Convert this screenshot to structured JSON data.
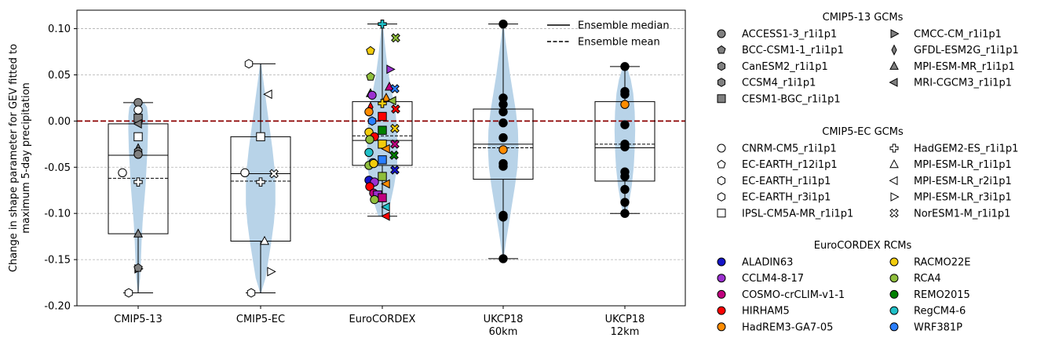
{
  "chart_data": {
    "type": "violin-box",
    "ylabel_lines": [
      "Change in shape parameter for GEV fitted to",
      "maximum 5-day precipitation"
    ],
    "ylim": [
      -0.2,
      0.12
    ],
    "yticks": [
      -0.2,
      -0.15,
      -0.1,
      -0.05,
      0.0,
      0.05,
      0.1
    ],
    "ytick_labels": [
      "-0.20",
      "-0.15",
      "-0.10",
      "-0.05",
      "0.00",
      "0.05",
      "0.10"
    ],
    "grid": "horizontal dashed",
    "zero_line_color": "#8b0000",
    "violin_color": "#b8d3e8",
    "categories": [
      {
        "label_lines": [
          "CMIP5-13"
        ]
      },
      {
        "label_lines": [
          "CMIP5-EC"
        ]
      },
      {
        "label_lines": [
          "EuroCORDEX"
        ]
      },
      {
        "label_lines": [
          "UKCP18",
          "60km"
        ]
      },
      {
        "label_lines": [
          "UKCP18",
          "12km"
        ]
      }
    ],
    "groups": [
      {
        "min": -0.186,
        "max": 0.02,
        "q1": -0.122,
        "q3": -0.003,
        "median": -0.037,
        "mean": -0.062,
        "violin": [
          [
            -0.186,
            0.003
          ],
          [
            -0.17,
            0.02
          ],
          [
            -0.15,
            0.028
          ],
          [
            -0.13,
            0.035
          ],
          [
            -0.11,
            0.045
          ],
          [
            -0.09,
            0.06
          ],
          [
            -0.07,
            0.075
          ],
          [
            -0.05,
            0.085
          ],
          [
            -0.03,
            0.095
          ],
          [
            -0.01,
            0.1
          ],
          [
            0.005,
            0.1
          ],
          [
            0.015,
            0.09
          ],
          [
            0.02,
            0.06
          ]
        ],
        "points": [
          {
            "y": 0.02,
            "m": "o",
            "c": "#808080"
          },
          {
            "y": 0.012,
            "m": "o",
            "c": "#ffffff"
          },
          {
            "y": 0.003,
            "m": "s",
            "c": "#808080"
          },
          {
            "y": -0.003,
            "m": "<",
            "c": "#808080"
          },
          {
            "y": -0.017,
            "m": "s",
            "c": "#ffffff"
          },
          {
            "y": -0.03,
            "m": "d",
            "c": "#808080"
          },
          {
            "y": -0.033,
            "m": "h",
            "c": "#808080"
          },
          {
            "y": -0.036,
            "m": "o",
            "c": "#808080"
          },
          {
            "y": -0.056,
            "m": "o",
            "c": "#ffffff",
            "dx": -20
          },
          {
            "y": -0.066,
            "m": "P",
            "c": "#ffffff"
          },
          {
            "y": -0.122,
            "m": "^",
            "c": "#808080"
          },
          {
            "y": -0.16,
            "m": ">",
            "c": "#808080"
          },
          {
            "y": -0.159,
            "m": "p",
            "c": "#808080"
          },
          {
            "y": -0.186,
            "m": "h",
            "c": "#ffffff",
            "dx": -12
          }
        ]
      },
      {
        "min": -0.186,
        "max": 0.062,
        "q1": -0.13,
        "q3": -0.017,
        "median": -0.057,
        "mean": -0.065,
        "violin": [
          [
            -0.186,
            0.005
          ],
          [
            -0.17,
            0.05
          ],
          [
            -0.15,
            0.08
          ],
          [
            -0.13,
            0.11
          ],
          [
            -0.11,
            0.135
          ],
          [
            -0.09,
            0.15
          ],
          [
            -0.07,
            0.15
          ],
          [
            -0.05,
            0.14
          ],
          [
            -0.03,
            0.12
          ],
          [
            -0.01,
            0.095
          ],
          [
            0.01,
            0.07
          ],
          [
            0.03,
            0.045
          ],
          [
            0.05,
            0.02
          ],
          [
            0.062,
            0.005
          ]
        ],
        "points": [
          {
            "y": 0.062,
            "m": "h",
            "c": "#ffffff",
            "dx": -15
          },
          {
            "y": 0.029,
            "m": "<",
            "c": "#ffffff",
            "dx": 10
          },
          {
            "y": -0.017,
            "m": "s",
            "c": "#ffffff"
          },
          {
            "y": -0.056,
            "m": "o",
            "c": "#ffffff",
            "dx": -20
          },
          {
            "y": -0.057,
            "m": "X",
            "c": "#ffffff",
            "dx": 17
          },
          {
            "y": -0.066,
            "m": "P",
            "c": "#ffffff"
          },
          {
            "y": -0.13,
            "m": "^",
            "c": "#ffffff",
            "dx": 5
          },
          {
            "y": -0.163,
            "m": ">",
            "c": "#ffffff",
            "dx": 13
          },
          {
            "y": -0.186,
            "m": "h",
            "c": "#ffffff",
            "dx": -12
          }
        ]
      },
      {
        "min": -0.103,
        "max": 0.105,
        "q1": -0.048,
        "q3": 0.021,
        "median": -0.021,
        "mean": -0.016,
        "violin": [
          [
            -0.103,
            0.04
          ],
          [
            -0.09,
            0.08
          ],
          [
            -0.07,
            0.12
          ],
          [
            -0.05,
            0.15
          ],
          [
            -0.03,
            0.155
          ],
          [
            -0.01,
            0.15
          ],
          [
            0.01,
            0.135
          ],
          [
            0.03,
            0.1
          ],
          [
            0.05,
            0.065
          ],
          [
            0.07,
            0.04
          ],
          [
            0.09,
            0.02
          ],
          [
            0.105,
            0.005
          ]
        ],
        "points": [
          {
            "y": 0.105,
            "m": "P",
            "c": "#20c0c8"
          },
          {
            "y": 0.09,
            "m": "X",
            "c": "#8fbe3c",
            "dx": 17
          },
          {
            "y": 0.076,
            "m": "p",
            "c": "#f2cc0c",
            "dx": -15
          },
          {
            "y": 0.056,
            "m": ">",
            "c": "#9b30d0",
            "dx": 10
          },
          {
            "y": 0.048,
            "m": "p",
            "c": "#8fbe3c",
            "dx": -15
          },
          {
            "y": 0.037,
            "m": "^",
            "c": "#c0007f",
            "dx": 9
          },
          {
            "y": 0.035,
            "m": "X",
            "c": "#2a7fff",
            "dx": 16
          },
          {
            "y": 0.03,
            "m": "^",
            "c": "#008000",
            "dx": -15
          },
          {
            "y": 0.028,
            "m": "o",
            "c": "#9b30d0",
            "dx": -13
          },
          {
            "y": 0.025,
            "m": "^",
            "c": "#ff8c00",
            "dx": 5
          },
          {
            "y": 0.022,
            "m": "<",
            "c": "#8fbe3c",
            "dx": 13
          },
          {
            "y": 0.019,
            "m": "P",
            "c": "#f2cc0c"
          },
          {
            "y": 0.015,
            "m": "d",
            "c": "#ff0000",
            "dx": -15
          },
          {
            "y": 0.013,
            "m": "X",
            "c": "#ff0000",
            "dx": 17
          },
          {
            "y": 0.01,
            "m": "o",
            "c": "#ff8c00",
            "dx": -17
          },
          {
            "y": 0.005,
            "m": "s",
            "c": "#ff0000"
          },
          {
            "y": 0.0,
            "m": "h",
            "c": "#2a7fff",
            "dx": -13
          },
          {
            "y": -0.01,
            "m": "s",
            "c": "#008000"
          },
          {
            "y": -0.008,
            "m": "X",
            "c": "#f2cc0c",
            "dx": 16
          },
          {
            "y": -0.012,
            "m": "o",
            "c": "#f2cc0c",
            "dx": -17
          },
          {
            "y": -0.017,
            "m": "o",
            "c": "#ff0000",
            "dx": -10
          },
          {
            "y": -0.02,
            "m": "o",
            "c": "#8fbe3c",
            "dx": -16
          },
          {
            "y": -0.025,
            "m": "s",
            "c": "#f2cc0c"
          },
          {
            "y": -0.025,
            "m": "X",
            "c": "#c0007f",
            "dx": 16
          },
          {
            "y": -0.03,
            "m": "<",
            "c": "#ff8c00",
            "dx": 5
          },
          {
            "y": -0.034,
            "m": "o",
            "c": "#20c0c8",
            "dx": -17
          },
          {
            "y": -0.037,
            "m": "X",
            "c": "#008000",
            "dx": 15
          },
          {
            "y": -0.042,
            "m": "s",
            "c": "#2a7fff"
          },
          {
            "y": -0.045,
            "m": "o",
            "c": "#2a7fff",
            "dx": -12
          },
          {
            "y": -0.048,
            "m": "o",
            "c": "#8fbe3c",
            "dx": -17
          },
          {
            "y": -0.046,
            "m": "o",
            "c": "#f2cc0c",
            "dx": -11
          },
          {
            "y": -0.053,
            "m": "X",
            "c": "#1414c8",
            "dx": 16
          },
          {
            "y": -0.06,
            "m": "s",
            "c": "#8fbe3c"
          },
          {
            "y": -0.064,
            "m": "o",
            "c": "#1414c8",
            "dx": -17
          },
          {
            "y": -0.066,
            "m": "o",
            "c": "#9b30d0",
            "dx": -10
          },
          {
            "y": -0.068,
            "m": "<",
            "c": "#ff8c00",
            "dx": 5
          },
          {
            "y": -0.071,
            "m": "o",
            "c": "#ff0000",
            "dx": -16
          },
          {
            "y": -0.078,
            "m": "o",
            "c": "#c0007f",
            "dx": -11
          },
          {
            "y": -0.08,
            "m": "s",
            "c": "#9b30d0",
            "dx": -6
          },
          {
            "y": -0.083,
            "m": "s",
            "c": "#c0007f"
          },
          {
            "y": -0.085,
            "m": "o",
            "c": "#8fbe3c",
            "dx": -10
          },
          {
            "y": -0.093,
            "m": "<",
            "c": "#20c0c8",
            "dx": 5
          },
          {
            "y": -0.103,
            "m": "<",
            "c": "#ff0000",
            "dx": 5
          }
        ]
      },
      {
        "min": -0.149,
        "max": 0.105,
        "q1": -0.063,
        "q3": 0.013,
        "median": -0.025,
        "mean": -0.029,
        "violin": [
          [
            -0.149,
            0.005
          ],
          [
            -0.13,
            0.03
          ],
          [
            -0.11,
            0.06
          ],
          [
            -0.09,
            0.09
          ],
          [
            -0.07,
            0.12
          ],
          [
            -0.05,
            0.145
          ],
          [
            -0.03,
            0.155
          ],
          [
            -0.01,
            0.15
          ],
          [
            0.01,
            0.13
          ],
          [
            0.03,
            0.1
          ],
          [
            0.05,
            0.07
          ],
          [
            0.07,
            0.045
          ],
          [
            0.09,
            0.02
          ],
          [
            0.105,
            0.005
          ]
        ],
        "points": [
          {
            "y": 0.105,
            "m": "o",
            "c": "#000000"
          },
          {
            "y": 0.025,
            "m": "o",
            "c": "#000000"
          },
          {
            "y": 0.018,
            "m": "o",
            "c": "#000000"
          },
          {
            "y": 0.01,
            "m": "o",
            "c": "#000000"
          },
          {
            "y": -0.002,
            "m": "o",
            "c": "#000000"
          },
          {
            "y": -0.018,
            "m": "o",
            "c": "#000000"
          },
          {
            "y": -0.031,
            "m": "o",
            "c": "#ff8c00"
          },
          {
            "y": -0.046,
            "m": "o",
            "c": "#000000"
          },
          {
            "y": -0.049,
            "m": "o",
            "c": "#000000"
          },
          {
            "y": -0.102,
            "m": "o",
            "c": "#000000"
          },
          {
            "y": -0.104,
            "m": "o",
            "c": "#000000"
          },
          {
            "y": -0.149,
            "m": "o",
            "c": "#000000"
          }
        ]
      },
      {
        "min": -0.1,
        "max": 0.059,
        "q1": -0.065,
        "q3": 0.021,
        "median": -0.029,
        "mean": -0.025,
        "violin": [
          [
            -0.1,
            0.02
          ],
          [
            -0.09,
            0.04
          ],
          [
            -0.07,
            0.07
          ],
          [
            -0.05,
            0.09
          ],
          [
            -0.03,
            0.1
          ],
          [
            -0.01,
            0.105
          ],
          [
            0.01,
            0.1
          ],
          [
            0.03,
            0.085
          ],
          [
            0.045,
            0.06
          ],
          [
            0.059,
            0.02
          ]
        ],
        "points": [
          {
            "y": 0.059,
            "m": "o",
            "c": "#000000"
          },
          {
            "y": 0.032,
            "m": "o",
            "c": "#000000"
          },
          {
            "y": 0.029,
            "m": "o",
            "c": "#000000"
          },
          {
            "y": 0.018,
            "m": "o",
            "c": "#ff8c00"
          },
          {
            "y": -0.004,
            "m": "o",
            "c": "#000000"
          },
          {
            "y": -0.025,
            "m": "o",
            "c": "#000000"
          },
          {
            "y": -0.028,
            "m": "o",
            "c": "#000000"
          },
          {
            "y": -0.055,
            "m": "o",
            "c": "#000000"
          },
          {
            "y": -0.06,
            "m": "o",
            "c": "#000000"
          },
          {
            "y": -0.074,
            "m": "o",
            "c": "#000000"
          },
          {
            "y": -0.088,
            "m": "o",
            "c": "#000000"
          },
          {
            "y": -0.1,
            "m": "o",
            "c": "#000000"
          }
        ]
      }
    ],
    "inner_legend": [
      {
        "label": "Ensemble median",
        "style": "solid"
      },
      {
        "label": "Ensemble mean",
        "style": "dashed"
      }
    ],
    "legends": [
      {
        "title": "CMIP5-13 GCMs",
        "cols": [
          [
            {
              "label": "ACCESS1-3_r1i1p1",
              "m": "o",
              "c": "#808080"
            },
            {
              "label": "BCC-CSM1-1_r1i1p1",
              "m": "p",
              "c": "#808080"
            },
            {
              "label": "CanESM2_r1i1p1",
              "m": "h",
              "c": "#808080"
            },
            {
              "label": "CCSM4_r1i1p1",
              "m": "h",
              "c": "#808080"
            },
            {
              "label": "CESM1-BGC_r1i1p1",
              "m": "s",
              "c": "#808080"
            }
          ],
          [
            {
              "label": "CMCC-CM_r1i1p1",
              "m": ">",
              "c": "#808080"
            },
            {
              "label": "GFDL-ESM2G_r1i1p1",
              "m": "d",
              "c": "#808080"
            },
            {
              "label": "MPI-ESM-MR_r1i1p1",
              "m": "^",
              "c": "#808080"
            },
            {
              "label": "MRI-CGCM3_r1i1p1",
              "m": "<",
              "c": "#808080"
            }
          ]
        ]
      },
      {
        "title": "CMIP5-EC GCMs",
        "cols": [
          [
            {
              "label": "CNRM-CM5_r1i1p1",
              "m": "o",
              "c": "#ffffff"
            },
            {
              "label": "EC-EARTH_r12i1p1",
              "m": "p",
              "c": "#ffffff"
            },
            {
              "label": "EC-EARTH_r1i1p1",
              "m": "h",
              "c": "#ffffff"
            },
            {
              "label": "EC-EARTH_r3i1p1",
              "m": "h",
              "c": "#ffffff"
            },
            {
              "label": "IPSL-CM5A-MR_r1i1p1",
              "m": "s",
              "c": "#ffffff"
            }
          ],
          [
            {
              "label": "HadGEM2-ES_r1i1p1",
              "m": "P",
              "c": "#ffffff"
            },
            {
              "label": "MPI-ESM-LR_r1i1p1",
              "m": "^",
              "c": "#ffffff"
            },
            {
              "label": "MPI-ESM-LR_r2i1p1",
              "m": "<",
              "c": "#ffffff"
            },
            {
              "label": "MPI-ESM-LR_r3i1p1",
              "m": ">",
              "c": "#ffffff"
            },
            {
              "label": "NorESM1-M_r1i1p1",
              "m": "X",
              "c": "#ffffff"
            }
          ]
        ]
      },
      {
        "title": "EuroCORDEX RCMs",
        "cols": [
          [
            {
              "label": "ALADIN63",
              "m": "o",
              "c": "#1414c8"
            },
            {
              "label": "CCLM4-8-17",
              "m": "o",
              "c": "#9b30d0"
            },
            {
              "label": "COSMO-crCLIM-v1-1",
              "m": "o",
              "c": "#c0007f"
            },
            {
              "label": "HIRHAM5",
              "m": "o",
              "c": "#ff0000"
            },
            {
              "label": "HadREM3-GA7-05",
              "m": "o",
              "c": "#ff8c00"
            }
          ],
          [
            {
              "label": "RACMO22E",
              "m": "o",
              "c": "#f2cc0c"
            },
            {
              "label": "RCA4",
              "m": "o",
              "c": "#8fbe3c"
            },
            {
              "label": "REMO2015",
              "m": "o",
              "c": "#008000"
            },
            {
              "label": "RegCM4-6",
              "m": "o",
              "c": "#20c0c8"
            },
            {
              "label": "WRF381P",
              "m": "o",
              "c": "#2a7fff"
            }
          ]
        ]
      }
    ]
  }
}
